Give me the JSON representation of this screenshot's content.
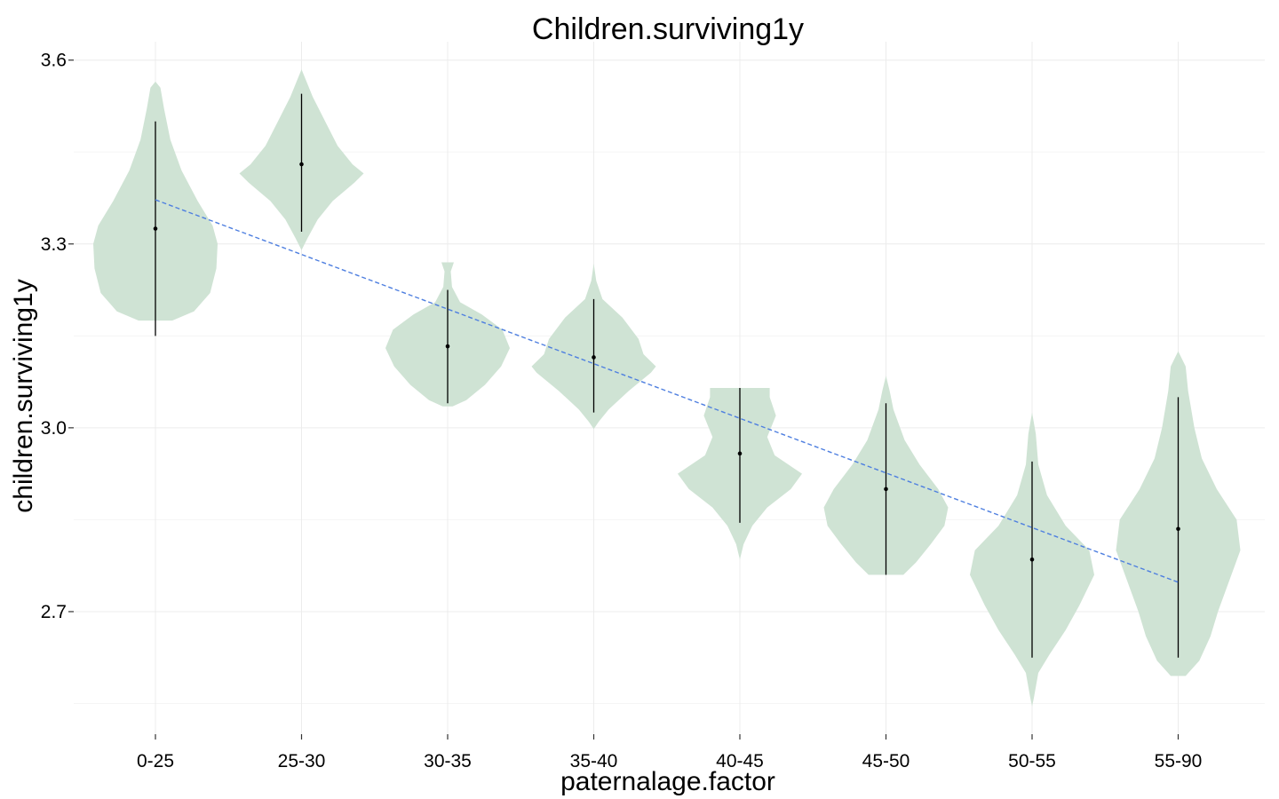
{
  "chart_data": {
    "type": "violin",
    "title": "Children.surviving1y",
    "xlabel": "paternalage.factor",
    "ylabel": "children.surviving1y",
    "categories": [
      "0-25",
      "25-30",
      "30-35",
      "35-40",
      "40-45",
      "45-50",
      "50-55",
      "55-90"
    ],
    "ylim": [
      2.5,
      3.63
    ],
    "yticks": [
      2.7,
      3.0,
      3.3,
      3.6
    ],
    "ytick_labels": [
      "2.7",
      "3.0",
      "3.3",
      "3.6"
    ],
    "grid": true,
    "colors": {
      "violin": "#cfe3d4",
      "trend": "#4e7fe0",
      "marker": "#000000"
    },
    "violins": [
      {
        "category": "0-25",
        "median": 3.325,
        "lower": 3.15,
        "upper": 3.5,
        "min": 3.175,
        "max": 3.565,
        "profile": [
          [
            3.175,
            0.27
          ],
          [
            3.19,
            0.62
          ],
          [
            3.22,
            0.88
          ],
          [
            3.26,
            0.98
          ],
          [
            3.3,
            1.0
          ],
          [
            3.33,
            0.92
          ],
          [
            3.37,
            0.68
          ],
          [
            3.42,
            0.42
          ],
          [
            3.47,
            0.24
          ],
          [
            3.52,
            0.14
          ],
          [
            3.555,
            0.08
          ],
          [
            3.565,
            0
          ]
        ]
      },
      {
        "category": "25-30",
        "median": 3.43,
        "lower": 3.32,
        "upper": 3.545,
        "min": 3.29,
        "max": 3.585,
        "profile": [
          [
            3.29,
            0
          ],
          [
            3.31,
            0.1
          ],
          [
            3.34,
            0.26
          ],
          [
            3.37,
            0.5
          ],
          [
            3.4,
            0.85
          ],
          [
            3.415,
            1.0
          ],
          [
            3.43,
            0.82
          ],
          [
            3.46,
            0.58
          ],
          [
            3.5,
            0.38
          ],
          [
            3.54,
            0.18
          ],
          [
            3.565,
            0.08
          ],
          [
            3.585,
            0
          ]
        ]
      },
      {
        "category": "30-35",
        "median": 3.133,
        "lower": 3.04,
        "upper": 3.225,
        "min": 3.035,
        "max": 3.27,
        "profile": [
          [
            3.035,
            0.08
          ],
          [
            3.045,
            0.3
          ],
          [
            3.07,
            0.6
          ],
          [
            3.1,
            0.86
          ],
          [
            3.13,
            1.0
          ],
          [
            3.16,
            0.88
          ],
          [
            3.185,
            0.55
          ],
          [
            3.205,
            0.2
          ],
          [
            3.23,
            0.07
          ],
          [
            3.255,
            0.05
          ],
          [
            3.27,
            0.1
          ]
        ]
      },
      {
        "category": "35-40",
        "median": 3.115,
        "lower": 3.025,
        "upper": 3.21,
        "min": 2.998,
        "max": 3.268,
        "profile": [
          [
            2.998,
            0
          ],
          [
            3.01,
            0.08
          ],
          [
            3.03,
            0.24
          ],
          [
            3.06,
            0.56
          ],
          [
            3.09,
            0.92
          ],
          [
            3.1,
            1.0
          ],
          [
            3.12,
            0.8
          ],
          [
            3.145,
            0.72
          ],
          [
            3.18,
            0.46
          ],
          [
            3.21,
            0.14
          ],
          [
            3.24,
            0.04
          ],
          [
            3.268,
            0
          ]
        ]
      },
      {
        "category": "40-45",
        "median": 2.958,
        "lower": 2.845,
        "upper": 3.065,
        "min": 2.785,
        "max": 3.065,
        "profile": [
          [
            2.785,
            0
          ],
          [
            2.81,
            0.06
          ],
          [
            2.84,
            0.2
          ],
          [
            2.87,
            0.44
          ],
          [
            2.9,
            0.82
          ],
          [
            2.925,
            1.0
          ],
          [
            2.955,
            0.56
          ],
          [
            2.985,
            0.44
          ],
          [
            3.02,
            0.58
          ],
          [
            3.05,
            0.48
          ],
          [
            3.065,
            0.48
          ]
        ]
      },
      {
        "category": "45-50",
        "median": 2.9,
        "lower": 2.76,
        "upper": 3.04,
        "min": 2.76,
        "max": 3.085,
        "profile": [
          [
            2.76,
            0.28
          ],
          [
            2.78,
            0.48
          ],
          [
            2.81,
            0.72
          ],
          [
            2.84,
            0.94
          ],
          [
            2.87,
            1.0
          ],
          [
            2.9,
            0.84
          ],
          [
            2.94,
            0.54
          ],
          [
            2.98,
            0.3
          ],
          [
            3.03,
            0.12
          ],
          [
            3.06,
            0.06
          ],
          [
            3.085,
            0
          ]
        ]
      },
      {
        "category": "50-55",
        "median": 2.785,
        "lower": 2.625,
        "upper": 2.945,
        "min": 2.545,
        "max": 3.025,
        "profile": [
          [
            2.545,
            0
          ],
          [
            2.56,
            0.03
          ],
          [
            2.6,
            0.1
          ],
          [
            2.63,
            0.28
          ],
          [
            2.67,
            0.54
          ],
          [
            2.71,
            0.76
          ],
          [
            2.76,
            1.0
          ],
          [
            2.8,
            0.92
          ],
          [
            2.84,
            0.54
          ],
          [
            2.89,
            0.24
          ],
          [
            2.94,
            0.1
          ],
          [
            2.99,
            0.06
          ],
          [
            3.025,
            0
          ]
        ]
      },
      {
        "category": "55-90",
        "median": 2.835,
        "lower": 2.625,
        "upper": 3.05,
        "min": 2.595,
        "max": 3.125,
        "profile": [
          [
            2.595,
            0.12
          ],
          [
            2.62,
            0.34
          ],
          [
            2.66,
            0.52
          ],
          [
            2.7,
            0.64
          ],
          [
            2.75,
            0.82
          ],
          [
            2.8,
            1.0
          ],
          [
            2.85,
            0.94
          ],
          [
            2.9,
            0.62
          ],
          [
            2.95,
            0.38
          ],
          [
            3.0,
            0.26
          ],
          [
            3.06,
            0.16
          ],
          [
            3.1,
            0.12
          ],
          [
            3.125,
            0
          ]
        ]
      }
    ],
    "trend_line": {
      "style": "dashed",
      "x": [
        "0-25",
        "55-90"
      ],
      "y": [
        3.372,
        2.748
      ]
    }
  }
}
